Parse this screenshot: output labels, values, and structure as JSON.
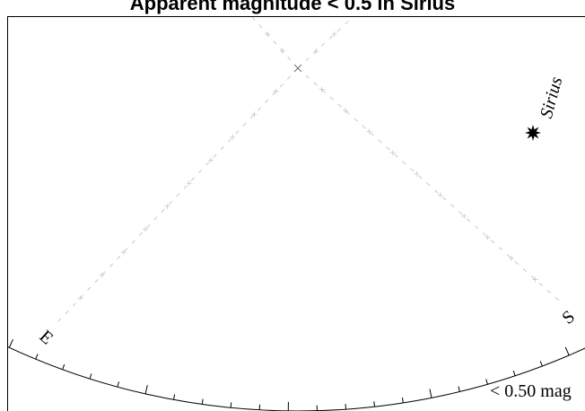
{
  "title": "Apparent magnitude < 0.5 in Sirius",
  "chart_data": {
    "type": "scatter",
    "title": "Apparent magnitude < 0.5 in Sirius",
    "objects": [
      {
        "name": "Sirius",
        "marker": "star"
      }
    ],
    "compass": [
      {
        "label": "E"
      },
      {
        "label": "S"
      }
    ],
    "footer_label": "< 0.50 mag",
    "colors": {
      "background": "#ffffff",
      "horizon": "#000000",
      "grid": "#c8c8c8",
      "text": "#000000"
    }
  }
}
